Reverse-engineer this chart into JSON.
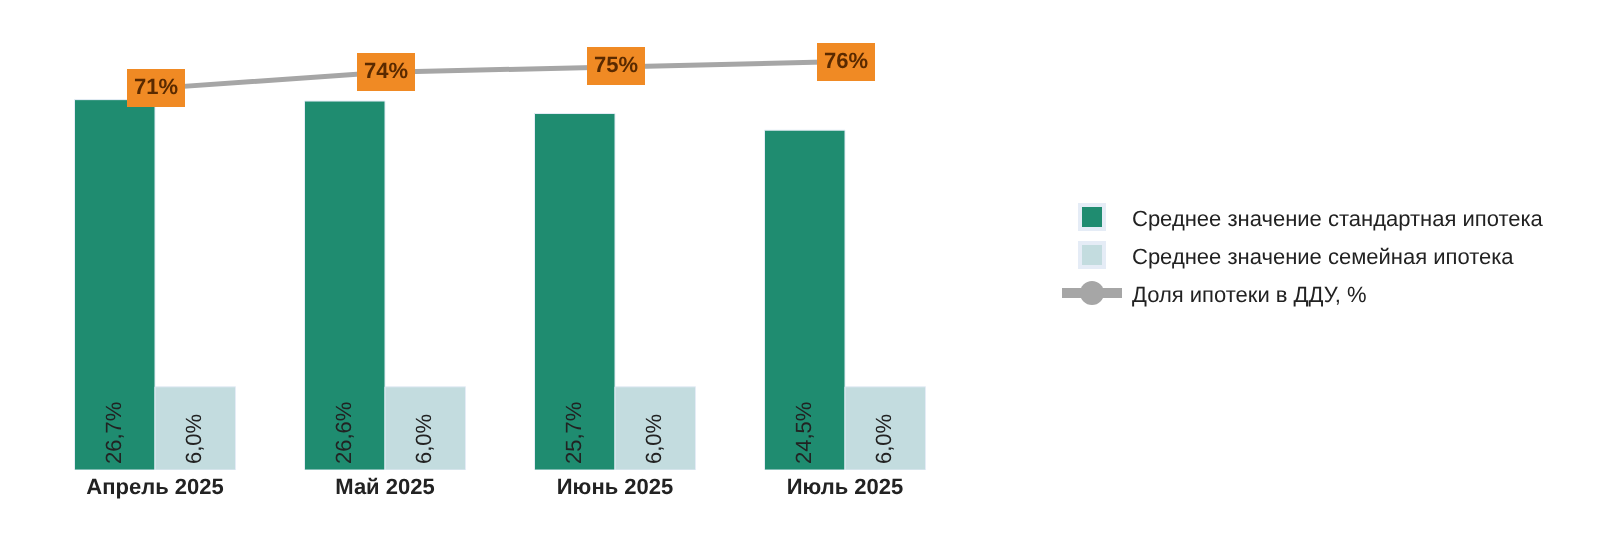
{
  "chart_data": {
    "type": "bar",
    "categories": [
      "Апрель 2025",
      "Май 2025",
      "Июнь 2025",
      "Июль 2025"
    ],
    "series": [
      {
        "name": "Среднее значение стандартная ипотека",
        "color": "#1f8c70",
        "values": [
          26.7,
          26.6,
          25.7,
          24.5
        ],
        "value_labels": [
          "26,7%",
          "26,6%",
          "25,7%",
          "24,5%"
        ]
      },
      {
        "name": "Среднее значение семейная ипотека",
        "color": "#c3dcdf",
        "values": [
          6.0,
          6.0,
          6.0,
          6.0
        ],
        "value_labels": [
          "6,0%",
          "6,0%",
          "6,0%",
          "6,0%"
        ]
      },
      {
        "name": "Доля ипотеки в ДДУ, %",
        "type": "line",
        "axis": "y2",
        "color": "#a6a6a6",
        "values": [
          71,
          74,
          75,
          76
        ],
        "value_labels": [
          "71%",
          "74%",
          "75%",
          "76%"
        ]
      }
    ],
    "ylim": [
      0,
      31
    ],
    "y2lim": [
      0,
      80
    ],
    "tick_labels": "x",
    "legend": "right",
    "marker": "circle"
  }
}
